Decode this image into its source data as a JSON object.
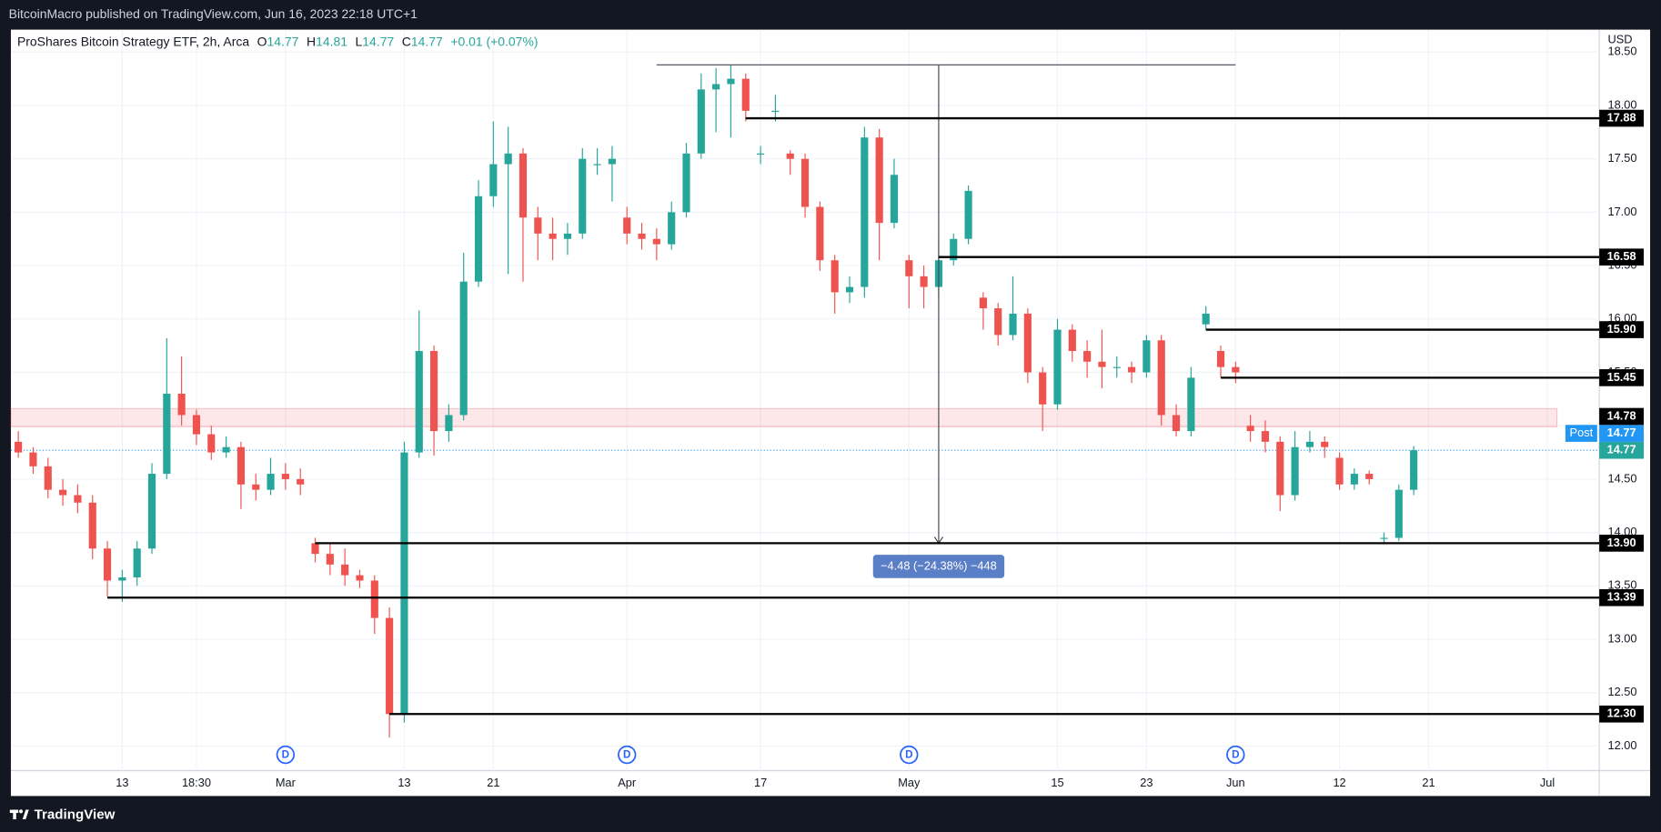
{
  "publisher_line": "BitcoinMacro published on TradingView.com, Jun 16, 2023 22:18 UTC+1",
  "brand": "TradingView",
  "chart_data": {
    "type": "candlestick",
    "header": {
      "symbol": "ProShares Bitcoin Strategy ETF, 2h, Arca",
      "open_label": "O",
      "open_value": "14.77",
      "high_label": "H",
      "high_value": "14.81",
      "low_label": "L",
      "low_value": "14.77",
      "close_label": "C",
      "close_value": "14.77",
      "change": "+0.01 (+0.07%)"
    },
    "currency": "USD",
    "categories": [
      null,
      null,
      null,
      null,
      null,
      null,
      null,
      "13",
      null,
      null,
      null,
      null,
      "18:30",
      null,
      null,
      null,
      null,
      null,
      "Mar",
      null,
      null,
      null,
      null,
      null,
      null,
      null,
      "13",
      null,
      null,
      null,
      null,
      null,
      "21",
      null,
      null,
      null,
      null,
      null,
      null,
      null,
      null,
      "Apr",
      null,
      null,
      null,
      null,
      null,
      null,
      null,
      null,
      "17",
      null,
      null,
      null,
      null,
      null,
      null,
      null,
      null,
      null,
      "May",
      null,
      null,
      null,
      null,
      null,
      null,
      null,
      null,
      null,
      "15",
      null,
      null,
      null,
      null,
      null,
      "23",
      null,
      null,
      null,
      null,
      null,
      "Jun",
      null,
      null,
      null,
      null,
      null,
      null,
      "12",
      null,
      null,
      null,
      null,
      null,
      "21",
      null,
      null,
      null,
      null,
      null,
      null,
      null,
      "Jul",
      null,
      null,
      null
    ],
    "open": [
      14.85,
      14.75,
      14.62,
      14.4,
      14.35,
      14.28,
      13.85,
      13.55,
      13.58,
      13.85,
      14.55,
      15.3,
      15.1,
      14.92,
      14.75,
      14.8,
      14.45,
      14.4,
      14.55,
      14.5,
      13.9,
      13.8,
      13.7,
      13.6,
      13.55,
      13.2,
      12.3,
      14.75,
      15.7,
      14.95,
      15.1,
      16.35,
      17.15,
      17.45,
      17.55,
      16.95,
      16.8,
      16.75,
      16.8,
      17.45,
      17.45,
      16.95,
      16.8,
      16.75,
      16.7,
      17.0,
      17.55,
      18.15,
      18.2,
      18.25,
      17.55,
      17.95,
      17.55,
      17.5,
      17.05,
      16.55,
      16.25,
      16.3,
      17.7,
      16.9,
      16.55,
      16.4,
      16.3,
      16.55,
      16.75,
      16.2,
      16.1,
      15.85,
      16.05,
      15.5,
      15.2,
      15.9,
      15.7,
      15.6,
      15.55,
      15.55,
      15.5,
      15.8,
      15.1,
      14.95,
      15.95,
      15.7,
      15.55,
      15.0,
      14.95,
      14.85,
      14.35,
      14.8,
      14.85,
      14.7,
      14.45,
      14.55,
      13.95,
      13.95,
      14.4,
      null,
      null,
      null,
      null,
      null,
      null,
      null,
      null,
      null,
      null,
      null,
      null
    ],
    "high": [
      14.95,
      14.8,
      14.7,
      14.5,
      14.45,
      14.35,
      13.92,
      13.65,
      13.92,
      14.65,
      15.82,
      15.65,
      15.15,
      15.0,
      14.9,
      14.85,
      14.55,
      14.7,
      14.65,
      14.6,
      13.95,
      13.9,
      13.85,
      13.65,
      13.6,
      13.3,
      14.85,
      16.08,
      15.75,
      15.2,
      16.62,
      17.3,
      17.85,
      17.8,
      17.6,
      17.05,
      16.95,
      16.9,
      17.6,
      17.6,
      17.62,
      17.05,
      16.9,
      16.85,
      17.1,
      17.65,
      18.3,
      18.35,
      18.38,
      18.3,
      17.62,
      18.1,
      17.58,
      17.55,
      17.1,
      16.6,
      16.4,
      17.8,
      17.78,
      17.5,
      16.6,
      16.5,
      16.75,
      16.8,
      17.25,
      16.25,
      16.15,
      16.4,
      16.1,
      15.55,
      16.0,
      15.95,
      15.8,
      15.9,
      15.65,
      15.6,
      15.85,
      15.85,
      15.2,
      15.55,
      16.12,
      15.75,
      15.6,
      15.1,
      15.05,
      14.9,
      14.95,
      14.95,
      14.9,
      14.75,
      14.6,
      14.58,
      14.0,
      14.45,
      14.81,
      null,
      null,
      null,
      null,
      null,
      null,
      null,
      null,
      null,
      null,
      null,
      null
    ],
    "low": [
      14.7,
      14.55,
      14.32,
      14.25,
      14.18,
      13.75,
      13.4,
      13.35,
      13.5,
      13.8,
      14.5,
      15.0,
      14.82,
      14.68,
      14.7,
      14.22,
      14.3,
      14.35,
      14.4,
      14.35,
      13.72,
      13.6,
      13.5,
      13.48,
      13.05,
      12.08,
      12.22,
      14.7,
      14.72,
      14.85,
      15.05,
      16.3,
      17.05,
      16.42,
      16.35,
      16.55,
      16.55,
      16.6,
      16.75,
      17.35,
      17.1,
      16.7,
      16.65,
      16.55,
      16.65,
      16.95,
      17.5,
      17.75,
      17.7,
      17.85,
      17.45,
      17.85,
      17.35,
      16.95,
      16.45,
      16.05,
      16.15,
      16.2,
      16.55,
      16.85,
      16.1,
      16.1,
      16.2,
      16.5,
      16.7,
      15.9,
      15.75,
      15.8,
      15.4,
      14.95,
      15.15,
      15.6,
      15.45,
      15.35,
      15.45,
      15.4,
      15.45,
      15.0,
      14.9,
      14.9,
      15.9,
      15.45,
      15.4,
      14.85,
      14.75,
      14.2,
      14.3,
      14.75,
      14.7,
      14.4,
      14.4,
      14.45,
      13.9,
      13.92,
      14.35,
      null,
      null,
      null,
      null,
      null,
      null,
      null,
      null,
      null,
      null,
      null,
      null
    ],
    "close": [
      14.75,
      14.62,
      14.4,
      14.35,
      14.28,
      13.85,
      13.55,
      13.58,
      13.85,
      14.55,
      15.3,
      15.1,
      14.92,
      14.75,
      14.8,
      14.45,
      14.4,
      14.55,
      14.5,
      14.45,
      13.8,
      13.7,
      13.6,
      13.55,
      13.2,
      12.3,
      14.75,
      15.7,
      14.95,
      15.1,
      16.35,
      17.15,
      17.45,
      17.55,
      16.95,
      16.8,
      16.75,
      16.8,
      17.5,
      17.45,
      17.5,
      16.8,
      16.75,
      16.7,
      17.0,
      17.55,
      18.15,
      18.2,
      18.25,
      17.95,
      17.55,
      17.95,
      17.5,
      17.05,
      16.55,
      16.25,
      16.3,
      17.7,
      16.9,
      17.35,
      16.4,
      16.3,
      16.55,
      16.75,
      17.2,
      16.1,
      15.85,
      16.05,
      15.5,
      15.2,
      15.9,
      15.7,
      15.6,
      15.55,
      15.55,
      15.5,
      15.8,
      15.1,
      14.95,
      15.45,
      16.05,
      15.55,
      15.5,
      14.95,
      14.85,
      14.35,
      14.8,
      14.85,
      14.8,
      14.45,
      14.55,
      14.5,
      13.95,
      14.4,
      14.77,
      null,
      null,
      null,
      null,
      null,
      null,
      null,
      null,
      null,
      null,
      null,
      null
    ],
    "up_color": "#26a69a",
    "down_color": "#ef5350",
    "ylim": [
      11.77,
      18.71
    ],
    "yticks": [
      {
        "value": 12,
        "label": "12.00"
      },
      {
        "value": 12.5,
        "label": "12.50"
      },
      {
        "value": 13,
        "label": "13.00"
      },
      {
        "value": 13.5,
        "label": "13.50"
      },
      {
        "value": 14,
        "label": "14.00"
      },
      {
        "value": 14.5,
        "label": "14.50"
      },
      {
        "value": 15,
        "label": "15.00"
      },
      {
        "value": 15.5,
        "label": "15.50"
      },
      {
        "value": 16,
        "label": "16.00"
      },
      {
        "value": 16.5,
        "label": "16.50"
      },
      {
        "value": 17,
        "label": "17.00"
      },
      {
        "value": 17.5,
        "label": "17.50"
      },
      {
        "value": 18,
        "label": "18.00"
      },
      {
        "value": 18.5,
        "label": "18.50"
      }
    ],
    "grid": true,
    "levels": [
      17.88,
      16.58,
      {
        "value": 15.9,
        "label": "15.90"
      },
      15.45,
      {
        "value": 13.9,
        "label": "13.90"
      },
      13.39,
      {
        "value": 12.3,
        "label": "12.30"
      }
    ],
    "zone": {
      "low": 14.99,
      "high": 15.16
    },
    "zone_price": 14.78,
    "post_label": "Post",
    "post_price": 14.77,
    "last_price": 14.77,
    "measure": {
      "from": 18.38,
      "to": 13.9,
      "label": "−4.48 (−24.38%) −448"
    },
    "dividend_markers": [
      "D",
      "D",
      "D",
      "D"
    ]
  }
}
